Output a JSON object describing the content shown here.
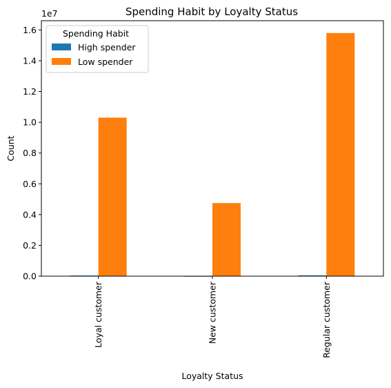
{
  "chart_data": {
    "type": "bar",
    "title": "Spending Habit by Loyalty Status",
    "xlabel": "Loyalty Status",
    "ylabel": "Count",
    "y_multiplier_label": "1e7",
    "ylim": [
      0,
      16600000
    ],
    "y_ticks": [
      0,
      2000000,
      4000000,
      6000000,
      8000000,
      10000000,
      12000000,
      14000000,
      16000000
    ],
    "y_tick_labels": [
      "0.0",
      "0.2",
      "0.4",
      "0.6",
      "0.8",
      "1.0",
      "1.2",
      "1.4",
      "1.6"
    ],
    "categories": [
      "Loyal customer",
      "New customer",
      "Regular customer"
    ],
    "legend": {
      "title": "Spending Habit",
      "position": "top-left"
    },
    "grid": false,
    "series": [
      {
        "name": "High spender",
        "color": "#1f77b4",
        "values": [
          40000,
          20000,
          50000
        ]
      },
      {
        "name": "Low spender",
        "color": "#ff7f0e",
        "values": [
          10300000,
          4750000,
          15800000
        ]
      }
    ]
  }
}
